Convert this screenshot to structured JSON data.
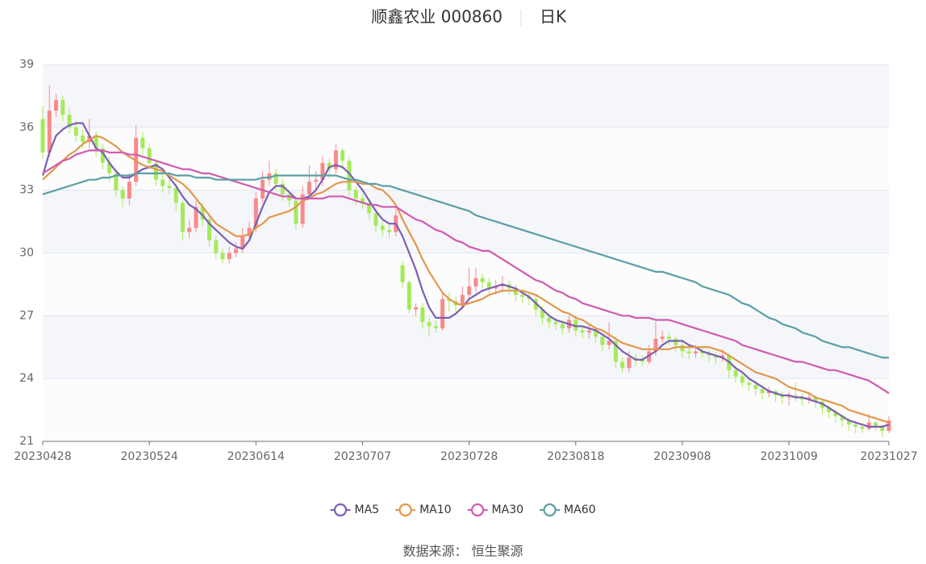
{
  "chart_data": {
    "type": "candlestick",
    "title": "顺鑫农业 000860",
    "subtitle": "日K",
    "source": "数据来源： 恒生聚源",
    "up_color": "#f88a8a",
    "down_color": "#a4ea5a",
    "grid": true,
    "split_area": true,
    "legend": "bottom",
    "ylim": [
      21,
      39
    ],
    "yticks": [
      21,
      24,
      27,
      30,
      33,
      36,
      39
    ],
    "categories": [
      "20230428",
      null,
      null,
      null,
      null,
      null,
      null,
      null,
      null,
      null,
      null,
      null,
      null,
      null,
      null,
      null,
      "20230524",
      null,
      null,
      null,
      null,
      null,
      null,
      null,
      null,
      null,
      null,
      null,
      null,
      null,
      null,
      null,
      "20230614",
      null,
      null,
      null,
      null,
      null,
      null,
      null,
      null,
      null,
      null,
      null,
      null,
      null,
      null,
      null,
      "20230707",
      null,
      null,
      null,
      null,
      null,
      null,
      null,
      null,
      null,
      null,
      null,
      null,
      null,
      null,
      null,
      "20230728",
      null,
      null,
      null,
      null,
      null,
      null,
      null,
      null,
      null,
      null,
      null,
      null,
      null,
      null,
      null,
      "20230818",
      null,
      null,
      null,
      null,
      null,
      null,
      null,
      null,
      null,
      null,
      null,
      null,
      null,
      null,
      null,
      "20230908",
      null,
      null,
      null,
      null,
      null,
      null,
      null,
      null,
      null,
      null,
      null,
      null,
      null,
      null,
      null,
      "20231009",
      null,
      null,
      null,
      null,
      null,
      null,
      null,
      null,
      null,
      null,
      null,
      null,
      null,
      null,
      "20231027"
    ],
    "ohlc": [
      [
        36.4,
        34.8,
        34.5,
        37.0
      ],
      [
        34.8,
        36.8,
        34.6,
        38.0
      ],
      [
        36.8,
        37.3,
        36.5,
        37.6
      ],
      [
        37.3,
        36.6,
        36.3,
        37.5
      ],
      [
        36.6,
        36.0,
        35.7,
        36.9
      ],
      [
        36.0,
        35.6,
        35.3,
        36.3
      ],
      [
        35.6,
        35.3,
        35.0,
        35.9
      ],
      [
        35.3,
        35.6,
        35.0,
        36.4
      ],
      [
        35.6,
        35.0,
        34.6,
        35.8
      ],
      [
        35.0,
        34.3,
        34.0,
        35.2
      ],
      [
        34.3,
        33.8,
        33.4,
        34.6
      ],
      [
        33.8,
        33.0,
        32.7,
        34.0
      ],
      [
        33.0,
        32.6,
        32.2,
        33.2
      ],
      [
        32.6,
        33.4,
        32.3,
        33.8
      ],
      [
        33.4,
        35.5,
        33.2,
        36.1
      ],
      [
        35.5,
        35.0,
        34.7,
        35.8
      ],
      [
        35.0,
        34.3,
        34.0,
        35.2
      ],
      [
        34.3,
        33.5,
        33.2,
        34.5
      ],
      [
        33.5,
        33.2,
        32.9,
        33.8
      ],
      [
        33.2,
        33.1,
        32.8,
        33.5
      ],
      [
        33.1,
        32.4,
        32.0,
        33.3
      ],
      [
        32.4,
        31.0,
        30.6,
        32.5
      ],
      [
        31.0,
        31.2,
        30.7,
        31.6
      ],
      [
        31.2,
        32.2,
        31.0,
        32.5
      ],
      [
        32.2,
        31.6,
        31.3,
        32.4
      ],
      [
        31.6,
        30.6,
        30.3,
        31.8
      ],
      [
        30.6,
        30.0,
        29.7,
        30.8
      ],
      [
        30.0,
        29.7,
        29.5,
        30.2
      ],
      [
        29.7,
        30.0,
        29.5,
        30.3
      ],
      [
        30.0,
        30.2,
        29.8,
        30.5
      ],
      [
        30.2,
        30.8,
        30.0,
        31.2
      ],
      [
        30.8,
        31.2,
        30.6,
        31.5
      ],
      [
        31.2,
        32.6,
        31.0,
        32.9
      ],
      [
        32.6,
        33.5,
        32.4,
        33.9
      ],
      [
        33.5,
        33.8,
        33.2,
        34.4
      ],
      [
        33.8,
        33.3,
        33.0,
        34.0
      ],
      [
        33.3,
        32.8,
        32.5,
        33.5
      ],
      [
        32.8,
        32.5,
        32.2,
        33.0
      ],
      [
        32.5,
        31.4,
        31.1,
        32.7
      ],
      [
        31.4,
        32.8,
        31.2,
        33.2
      ],
      [
        32.8,
        33.4,
        32.6,
        34.2
      ],
      [
        33.4,
        33.5,
        33.0,
        33.9
      ],
      [
        33.5,
        34.3,
        33.2,
        34.6
      ],
      [
        34.3,
        34.0,
        33.6,
        34.5
      ],
      [
        34.0,
        34.9,
        33.8,
        35.2
      ],
      [
        34.9,
        34.4,
        34.0,
        35.0
      ],
      [
        34.4,
        33.0,
        32.7,
        34.6
      ],
      [
        33.0,
        32.6,
        32.3,
        33.2
      ],
      [
        32.6,
        32.4,
        32.1,
        32.8
      ],
      [
        32.4,
        31.9,
        31.6,
        32.6
      ],
      [
        31.9,
        31.3,
        31.0,
        32.1
      ],
      [
        31.3,
        31.1,
        30.8,
        31.5
      ],
      [
        31.1,
        31.0,
        30.7,
        31.4
      ],
      [
        31.0,
        31.8,
        30.8,
        32.1
      ],
      [
        29.4,
        28.6,
        28.3,
        29.6
      ],
      [
        28.6,
        27.3,
        27.1,
        28.7
      ],
      [
        27.3,
        27.4,
        27.0,
        27.6
      ],
      [
        27.4,
        26.7,
        26.4,
        27.6
      ],
      [
        26.7,
        26.5,
        26.0,
        26.9
      ],
      [
        26.5,
        26.4,
        26.2,
        26.8
      ],
      [
        26.4,
        27.8,
        26.3,
        28.1
      ],
      [
        27.8,
        27.7,
        27.2,
        28.1
      ],
      [
        27.7,
        27.5,
        27.1,
        27.9
      ],
      [
        27.5,
        28.0,
        27.3,
        28.4
      ],
      [
        28.0,
        28.4,
        27.8,
        29.3
      ],
      [
        28.4,
        28.8,
        28.1,
        29.3
      ],
      [
        28.8,
        28.6,
        28.3,
        29.0
      ],
      [
        28.6,
        28.3,
        28.0,
        28.8
      ],
      [
        28.3,
        28.4,
        28.0,
        28.7
      ],
      [
        28.4,
        28.5,
        28.1,
        28.9
      ],
      [
        28.5,
        28.3,
        28.0,
        28.7
      ],
      [
        28.3,
        28.0,
        27.7,
        28.5
      ],
      [
        28.0,
        27.9,
        27.6,
        28.2
      ],
      [
        27.9,
        27.8,
        27.5,
        28.1
      ],
      [
        27.8,
        27.3,
        27.0,
        28.0
      ],
      [
        27.3,
        26.9,
        26.6,
        27.5
      ],
      [
        26.9,
        26.7,
        26.4,
        27.1
      ],
      [
        26.7,
        26.6,
        26.3,
        26.9
      ],
      [
        26.6,
        26.4,
        26.1,
        26.8
      ],
      [
        26.4,
        26.8,
        26.2,
        27.0
      ],
      [
        26.8,
        26.3,
        26.0,
        27.0
      ],
      [
        26.3,
        26.2,
        25.9,
        26.5
      ],
      [
        26.2,
        26.3,
        25.9,
        26.6
      ],
      [
        26.3,
        26.0,
        25.7,
        26.5
      ],
      [
        26.0,
        25.6,
        25.3,
        26.2
      ],
      [
        25.6,
        25.8,
        25.4,
        26.7
      ],
      [
        25.8,
        24.8,
        24.5,
        26.0
      ],
      [
        24.8,
        24.5,
        24.3,
        25.0
      ],
      [
        24.5,
        25.0,
        24.3,
        25.3
      ],
      [
        25.0,
        24.9,
        24.6,
        25.2
      ],
      [
        24.9,
        24.8,
        24.6,
        25.1
      ],
      [
        24.8,
        25.3,
        24.7,
        25.6
      ],
      [
        25.3,
        25.9,
        25.1,
        26.7
      ],
      [
        25.9,
        26.0,
        25.7,
        26.3
      ],
      [
        26.0,
        25.9,
        25.6,
        26.2
      ],
      [
        25.9,
        25.6,
        25.3,
        26.0
      ],
      [
        25.6,
        25.3,
        25.0,
        25.8
      ],
      [
        25.3,
        25.2,
        24.9,
        25.5
      ],
      [
        25.2,
        25.3,
        25.0,
        25.6
      ],
      [
        25.3,
        25.2,
        25.0,
        25.5
      ],
      [
        25.2,
        25.1,
        24.8,
        25.4
      ],
      [
        25.1,
        25.0,
        24.7,
        25.3
      ],
      [
        25.0,
        25.1,
        24.8,
        25.4
      ],
      [
        25.1,
        24.4,
        24.0,
        25.2
      ],
      [
        24.4,
        24.1,
        23.8,
        24.6
      ],
      [
        24.1,
        23.8,
        23.6,
        24.3
      ],
      [
        23.8,
        23.7,
        23.4,
        24.0
      ],
      [
        23.7,
        23.5,
        23.2,
        23.9
      ],
      [
        23.5,
        23.3,
        23.0,
        23.7
      ],
      [
        23.3,
        23.4,
        23.1,
        23.6
      ],
      [
        23.4,
        23.2,
        22.9,
        23.5
      ],
      [
        23.2,
        23.1,
        22.8,
        23.4
      ],
      [
        23.1,
        23.2,
        22.7,
        23.4
      ],
      [
        23.2,
        23.1,
        22.9,
        23.8
      ],
      [
        23.1,
        23.0,
        22.7,
        23.3
      ],
      [
        23.0,
        23.1,
        22.8,
        23.3
      ],
      [
        23.1,
        22.9,
        22.6,
        23.2
      ],
      [
        22.9,
        22.6,
        22.3,
        23.0
      ],
      [
        22.6,
        22.4,
        22.1,
        22.7
      ],
      [
        22.4,
        22.2,
        21.9,
        22.5
      ],
      [
        22.2,
        22.0,
        21.7,
        22.3
      ],
      [
        22.0,
        21.8,
        21.5,
        22.1
      ],
      [
        21.8,
        21.7,
        21.4,
        22.0
      ],
      [
        21.7,
        21.6,
        21.4,
        21.9
      ],
      [
        21.6,
        21.9,
        21.5,
        22.3
      ],
      [
        21.9,
        21.7,
        21.5,
        22.0
      ],
      [
        21.7,
        21.5,
        21.2,
        21.8
      ],
      [
        21.5,
        22.0,
        21.4,
        22.2
      ]
    ],
    "series": [
      {
        "name": "MA5",
        "color": "#7b5eb4",
        "values": [
          33.7,
          34.8,
          35.6,
          35.9,
          36.1,
          36.2,
          36.2,
          35.6,
          35.0,
          34.8,
          34.3,
          33.9,
          33.6,
          33.6,
          33.8,
          34.0,
          34.1,
          34.2,
          34.0,
          33.6,
          33.2,
          32.7,
          32.3,
          32.1,
          31.8,
          31.4,
          31.1,
          30.8,
          30.5,
          30.3,
          30.2,
          30.6,
          31.4,
          32.2,
          32.9,
          33.2,
          33.2,
          32.9,
          32.6,
          32.6,
          32.7,
          33.0,
          33.5,
          34.1,
          34.2,
          34.1,
          33.8,
          33.4,
          33.0,
          32.5,
          32.0,
          31.6,
          31.4,
          31.4,
          30.8,
          30.0,
          29.2,
          28.2,
          27.4,
          26.9,
          26.9,
          26.9,
          27.1,
          27.4,
          27.8,
          28.0,
          28.2,
          28.3,
          28.4,
          28.5,
          28.4,
          28.3,
          28.1,
          27.9,
          27.6,
          27.3,
          27.0,
          26.8,
          26.7,
          26.6,
          26.5,
          26.5,
          26.4,
          26.3,
          26.1,
          25.9,
          25.6,
          25.3,
          25.1,
          24.9,
          24.9,
          25.1,
          25.3,
          25.6,
          25.8,
          25.8,
          25.8,
          25.6,
          25.5,
          25.3,
          25.2,
          25.1,
          25.0,
          24.8,
          24.5,
          24.3,
          24.0,
          23.8,
          23.6,
          23.4,
          23.3,
          23.2,
          23.2,
          23.1,
          23.1,
          23.0,
          22.9,
          22.8,
          22.6,
          22.4,
          22.2,
          22.0,
          21.9,
          21.8,
          21.7,
          21.7,
          21.7,
          21.8
        ]
      },
      {
        "name": "MA10",
        "color": "#e3974c",
        "values": [
          33.5,
          33.8,
          34.1,
          34.4,
          34.7,
          34.9,
          35.2,
          35.4,
          35.6,
          35.5,
          35.3,
          35.1,
          34.8,
          34.6,
          34.4,
          34.2,
          34.1,
          34.0,
          33.9,
          33.7,
          33.5,
          33.3,
          33.0,
          32.6,
          32.2,
          31.8,
          31.4,
          31.2,
          31.0,
          30.8,
          30.8,
          30.9,
          31.2,
          31.4,
          31.7,
          31.8,
          31.9,
          32.0,
          32.2,
          32.5,
          32.6,
          32.8,
          32.9,
          33.1,
          33.3,
          33.4,
          33.4,
          33.4,
          33.3,
          33.3,
          33.1,
          33.0,
          32.7,
          32.3,
          31.6,
          31.0,
          30.4,
          29.7,
          29.1,
          28.6,
          28.1,
          27.8,
          27.6,
          27.5,
          27.6,
          27.7,
          27.8,
          28.0,
          28.1,
          28.2,
          28.2,
          28.2,
          28.2,
          28.1,
          28.0,
          27.8,
          27.6,
          27.4,
          27.2,
          27.1,
          26.9,
          26.8,
          26.6,
          26.4,
          26.3,
          26.1,
          25.9,
          25.7,
          25.6,
          25.5,
          25.4,
          25.4,
          25.4,
          25.4,
          25.4,
          25.5,
          25.5,
          25.5,
          25.5,
          25.5,
          25.5,
          25.4,
          25.3,
          25.1,
          24.9,
          24.7,
          24.5,
          24.3,
          24.2,
          24.1,
          24.0,
          23.8,
          23.6,
          23.5,
          23.4,
          23.3,
          23.1,
          23.0,
          22.9,
          22.8,
          22.7,
          22.5,
          22.4,
          22.3,
          22.2,
          22.1,
          22.0,
          21.9
        ]
      },
      {
        "name": "MA30",
        "color": "#d25aae",
        "values": [
          33.8,
          34.0,
          34.2,
          34.4,
          34.5,
          34.7,
          34.8,
          34.9,
          34.9,
          34.9,
          34.8,
          34.8,
          34.8,
          34.7,
          34.7,
          34.6,
          34.5,
          34.4,
          34.3,
          34.2,
          34.1,
          34.0,
          34.0,
          33.9,
          33.8,
          33.8,
          33.7,
          33.6,
          33.5,
          33.4,
          33.3,
          33.2,
          33.1,
          33.0,
          32.9,
          32.8,
          32.7,
          32.7,
          32.6,
          32.6,
          32.6,
          32.6,
          32.6,
          32.7,
          32.7,
          32.7,
          32.6,
          32.5,
          32.4,
          32.3,
          32.3,
          32.2,
          32.2,
          32.2,
          32.0,
          31.8,
          31.6,
          31.5,
          31.3,
          31.1,
          31.0,
          30.8,
          30.6,
          30.5,
          30.3,
          30.2,
          30.1,
          30.1,
          29.9,
          29.7,
          29.5,
          29.3,
          29.1,
          28.9,
          28.7,
          28.6,
          28.4,
          28.2,
          28.1,
          27.9,
          27.8,
          27.6,
          27.5,
          27.4,
          27.3,
          27.2,
          27.1,
          27.0,
          27.0,
          26.9,
          26.9,
          26.9,
          26.8,
          26.8,
          26.8,
          26.7,
          26.6,
          26.5,
          26.4,
          26.3,
          26.2,
          26.1,
          26.0,
          25.9,
          25.8,
          25.6,
          25.5,
          25.4,
          25.3,
          25.2,
          25.1,
          25.0,
          24.9,
          24.8,
          24.8,
          24.7,
          24.6,
          24.5,
          24.4,
          24.4,
          24.3,
          24.2,
          24.1,
          24.0,
          23.9,
          23.7,
          23.5,
          23.3
        ]
      },
      {
        "name": "MA60",
        "color": "#5a9fa4",
        "values": [
          32.8,
          32.9,
          33.0,
          33.1,
          33.2,
          33.3,
          33.4,
          33.5,
          33.5,
          33.6,
          33.6,
          33.7,
          33.7,
          33.7,
          33.8,
          33.8,
          33.8,
          33.8,
          33.8,
          33.8,
          33.7,
          33.7,
          33.7,
          33.6,
          33.6,
          33.6,
          33.5,
          33.5,
          33.5,
          33.5,
          33.5,
          33.5,
          33.5,
          33.6,
          33.6,
          33.7,
          33.7,
          33.7,
          33.7,
          33.7,
          33.7,
          33.7,
          33.7,
          33.7,
          33.7,
          33.6,
          33.5,
          33.5,
          33.4,
          33.3,
          33.3,
          33.2,
          33.2,
          33.1,
          33.0,
          32.9,
          32.8,
          32.7,
          32.6,
          32.5,
          32.4,
          32.3,
          32.2,
          32.1,
          32.0,
          31.8,
          31.7,
          31.6,
          31.5,
          31.4,
          31.3,
          31.2,
          31.1,
          31.0,
          30.9,
          30.8,
          30.7,
          30.6,
          30.5,
          30.4,
          30.3,
          30.2,
          30.1,
          30.0,
          29.9,
          29.8,
          29.7,
          29.6,
          29.5,
          29.4,
          29.3,
          29.2,
          29.1,
          29.1,
          29.0,
          28.9,
          28.8,
          28.7,
          28.6,
          28.4,
          28.3,
          28.2,
          28.1,
          28.0,
          27.8,
          27.6,
          27.5,
          27.3,
          27.1,
          26.9,
          26.8,
          26.6,
          26.5,
          26.4,
          26.2,
          26.1,
          26.0,
          25.8,
          25.7,
          25.6,
          25.5,
          25.5,
          25.4,
          25.3,
          25.2,
          25.1,
          25.0,
          25.0
        ]
      }
    ]
  }
}
